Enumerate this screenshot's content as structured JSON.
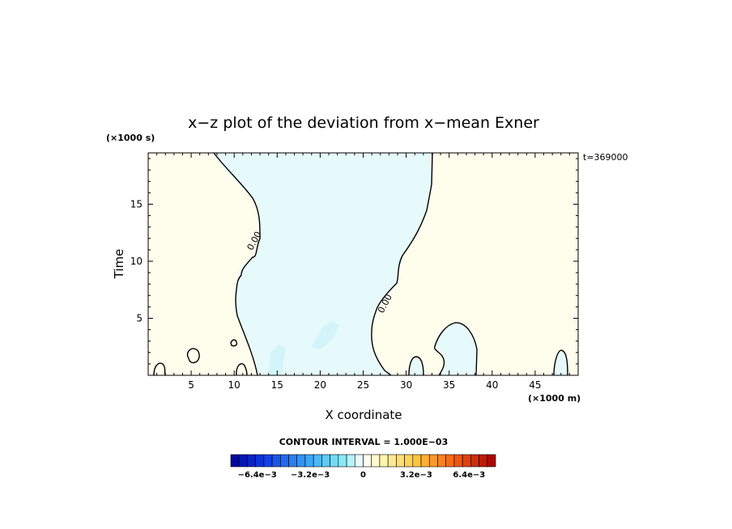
{
  "chart_data": {
    "type": "contour",
    "title": "x−z plot of the deviation from x−mean Exner",
    "xlabel": "X coordinate",
    "ylabel": "Time",
    "x_unit": "(×1000 m)",
    "y_unit": "(×1000 s)",
    "time_stamp": "t=369000",
    "xlim": [
      0,
      50
    ],
    "ylim": [
      0,
      19.5
    ],
    "x_ticks": [
      5,
      10,
      15,
      20,
      25,
      30,
      35,
      40,
      45
    ],
    "y_ticks": [
      5,
      10,
      15
    ],
    "contour_labels": [
      {
        "text": "0.00",
        "x": 12.3,
        "y": 11.8
      },
      {
        "text": "0.00",
        "x": 27.5,
        "y": 6.3
      }
    ],
    "contour_interval_text": "CONTOUR INTERVAL = 1.000E−03",
    "colorbar": {
      "min": -0.008,
      "max": 0.008,
      "levels": 32,
      "tick_labels": [
        {
          "text": "−6.4e−3",
          "value": -0.0064
        },
        {
          "text": "−3.2e−3",
          "value": -0.0032
        },
        {
          "text": "0",
          "value": 0
        },
        {
          "text": "3.2e−3",
          "value": 0.0032
        },
        {
          "text": "6.4e−3",
          "value": 0.0064
        }
      ]
    },
    "fill_colors": {
      "positive": "#fffdeb",
      "negative": "#e6fafc",
      "deeper_negative": "#d3f5fa",
      "zero_line": "#000000"
    }
  }
}
